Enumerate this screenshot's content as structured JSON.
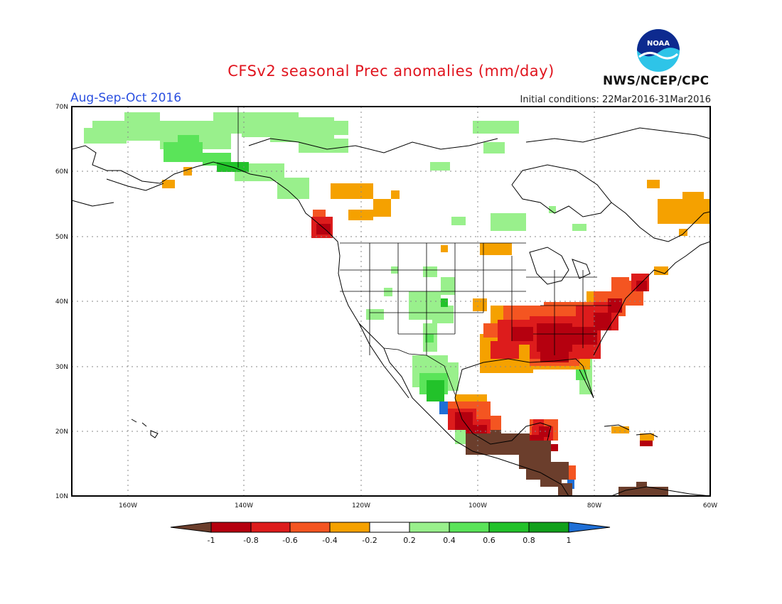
{
  "header": {
    "title": "CFSv2 seasonal Prec anomalies (mm/day)",
    "period": "Aug-Sep-Oct 2016",
    "initial_conditions": "Initial conditions: 22Mar2016-31Mar2016",
    "agency": "NWS/NCEP/CPC",
    "logo_text": "NOAA"
  },
  "map": {
    "lat_labels": [
      "70N",
      "60N",
      "50N",
      "40N",
      "30N",
      "20N",
      "10N"
    ],
    "lon_labels": [
      "160W",
      "140W",
      "120W",
      "100W",
      "80W",
      "60W"
    ]
  },
  "colorbar": {
    "labels": [
      "-1",
      "-0.8",
      "-0.6",
      "-0.4",
      "-0.2",
      "0.2",
      "0.4",
      "0.6",
      "0.8",
      "1"
    ],
    "colors": {
      "lt_neg1": "#6b3e2c",
      "neg1_neg08": "#b5000f",
      "neg08_neg06": "#dd1c1c",
      "neg06_neg04": "#f45521",
      "neg04_neg02": "#f5a100",
      "neutral": "#ffffff",
      "pos02_pos04": "#99f08c",
      "pos04_pos06": "#5ae459",
      "pos06_pos08": "#22c22a",
      "pos08_pos1": "#11a01b",
      "gt_pos1": "#1f6fd6"
    }
  }
}
